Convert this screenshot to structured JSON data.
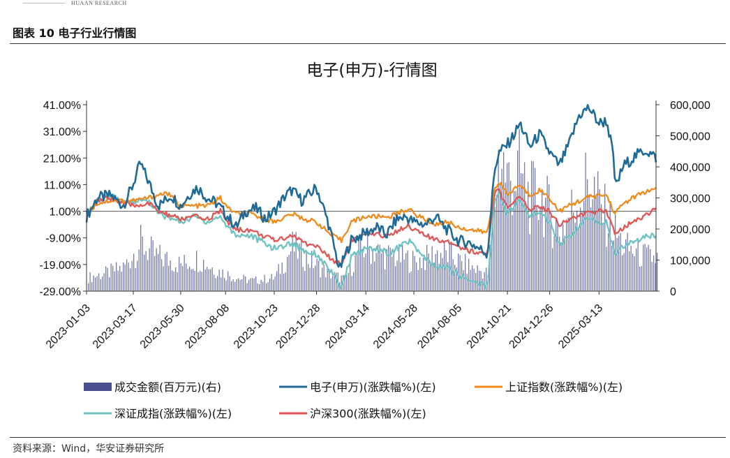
{
  "header": {
    "brand": "HUAAN RESEARCH",
    "figure_title": "图表 10 电子行业行情图"
  },
  "footer": {
    "source": "资料来源：Wind，华安证券研究所"
  },
  "colors": {
    "electronics": "#1f6a96",
    "shanghai": "#f08a1c",
    "shenzhen": "#6cc3c2",
    "hs300": "#e05654",
    "volume": "#4a4f8e"
  },
  "chart_data": {
    "type": "line",
    "title": "电子(申万)-行情图",
    "left_axis": {
      "ticks": [
        "41.00%",
        "31.00%",
        "21.00%",
        "11.00%",
        "1.00%",
        "-9.00%",
        "-19.00%",
        "-29.00%"
      ],
      "range": [
        -29,
        41
      ]
    },
    "right_axis": {
      "ticks": [
        "600,000",
        "500,000",
        "400,000",
        "300,000",
        "200,000",
        "100,000",
        "0"
      ],
      "range": [
        0,
        600000
      ]
    },
    "x_ticks": [
      "2023-01-03",
      "2023-03-17",
      "2023-05-30",
      "2023-08-08",
      "2023-10-23",
      "2023-12-28",
      "2024-03-14",
      "2024-05-28",
      "2024-08-05",
      "2024-10-21",
      "2024-12-26",
      "2025-03-13"
    ],
    "x_range": [
      "2023-01-03",
      "2025-06-10"
    ],
    "grid": "none",
    "legend_position": "bottom",
    "series": [
      {
        "name": "电子(申万)(涨跌幅%)(左)",
        "axis": "left",
        "points": [
          [
            "2023-01-03",
            -1
          ],
          [
            "2023-01-20",
            6
          ],
          [
            "2023-02-10",
            7
          ],
          [
            "2023-03-01",
            3
          ],
          [
            "2023-03-15",
            10
          ],
          [
            "2023-03-28",
            19
          ],
          [
            "2023-04-10",
            12
          ],
          [
            "2023-04-25",
            3
          ],
          [
            "2023-05-15",
            7
          ],
          [
            "2023-05-30",
            3
          ],
          [
            "2023-06-15",
            8
          ],
          [
            "2023-06-25",
            10
          ],
          [
            "2023-07-10",
            6
          ],
          [
            "2023-07-25",
            4
          ],
          [
            "2023-08-08",
            0
          ],
          [
            "2023-08-25",
            -5
          ],
          [
            "2023-09-08",
            1
          ],
          [
            "2023-09-25",
            2
          ],
          [
            "2023-10-10",
            -2
          ],
          [
            "2023-10-23",
            1
          ],
          [
            "2023-11-10",
            7
          ],
          [
            "2023-11-20",
            9
          ],
          [
            "2023-12-05",
            5
          ],
          [
            "2023-12-20",
            8
          ],
          [
            "2023-12-28",
            10
          ],
          [
            "2024-01-15",
            -3
          ],
          [
            "2024-02-02",
            -21
          ],
          [
            "2024-02-20",
            -10
          ],
          [
            "2024-03-14",
            -7
          ],
          [
            "2024-04-01",
            -5
          ],
          [
            "2024-04-15",
            -8
          ],
          [
            "2024-05-01",
            -2
          ],
          [
            "2024-05-15",
            -1
          ],
          [
            "2024-05-28",
            -3
          ],
          [
            "2024-06-15",
            -4
          ],
          [
            "2024-07-01",
            -1
          ],
          [
            "2024-07-15",
            -5
          ],
          [
            "2024-08-05",
            -10
          ],
          [
            "2024-08-25",
            -11
          ],
          [
            "2024-09-20",
            -15
          ],
          [
            "2024-10-01",
            17
          ],
          [
            "2024-10-08",
            23
          ],
          [
            "2024-10-21",
            26
          ],
          [
            "2024-11-01",
            30
          ],
          [
            "2024-11-10",
            34
          ],
          [
            "2024-11-25",
            25
          ],
          [
            "2024-12-10",
            30
          ],
          [
            "2024-12-26",
            23
          ],
          [
            "2025-01-10",
            18
          ],
          [
            "2025-01-25",
            26
          ],
          [
            "2025-02-10",
            37
          ],
          [
            "2025-02-25",
            40
          ],
          [
            "2025-03-13",
            34
          ],
          [
            "2025-03-25",
            35
          ],
          [
            "2025-04-03",
            24
          ],
          [
            "2025-04-08",
            10
          ],
          [
            "2025-04-20",
            18
          ],
          [
            "2025-05-10",
            22
          ],
          [
            "2025-05-25",
            24
          ],
          [
            "2025-06-10",
            21
          ]
        ]
      },
      {
        "name": "上证指数(涨跌幅%)(左)",
        "axis": "left",
        "points": [
          [
            "2023-01-03",
            0
          ],
          [
            "2023-01-20",
            4
          ],
          [
            "2023-02-10",
            5
          ],
          [
            "2023-03-01",
            5
          ],
          [
            "2023-03-17",
            5
          ],
          [
            "2023-04-10",
            6
          ],
          [
            "2023-05-08",
            8
          ],
          [
            "2023-05-30",
            3
          ],
          [
            "2023-06-20",
            3
          ],
          [
            "2023-07-10",
            3
          ],
          [
            "2023-07-31",
            6
          ],
          [
            "2023-08-08",
            3
          ],
          [
            "2023-08-25",
            0
          ],
          [
            "2023-09-15",
            0
          ],
          [
            "2023-10-23",
            -3
          ],
          [
            "2023-11-20",
            0
          ],
          [
            "2023-12-10",
            -2
          ],
          [
            "2023-12-28",
            -3
          ],
          [
            "2024-01-20",
            -8
          ],
          [
            "2024-02-05",
            -10
          ],
          [
            "2024-02-20",
            -3
          ],
          [
            "2024-03-14",
            -1
          ],
          [
            "2024-04-01",
            -1
          ],
          [
            "2024-04-20",
            -1
          ],
          [
            "2024-05-20",
            2
          ],
          [
            "2024-05-28",
            0
          ],
          [
            "2024-06-15",
            -2
          ],
          [
            "2024-07-01",
            -4
          ],
          [
            "2024-07-20",
            -3
          ],
          [
            "2024-08-05",
            -5
          ],
          [
            "2024-08-25",
            -6
          ],
          [
            "2024-09-20",
            -7
          ],
          [
            "2024-10-01",
            10
          ],
          [
            "2024-10-08",
            12
          ],
          [
            "2024-10-21",
            7
          ],
          [
            "2024-11-08",
            11
          ],
          [
            "2024-11-25",
            7
          ],
          [
            "2024-12-10",
            9
          ],
          [
            "2024-12-26",
            6
          ],
          [
            "2025-01-10",
            1
          ],
          [
            "2025-01-25",
            3
          ],
          [
            "2025-02-20",
            6
          ],
          [
            "2025-03-13",
            7
          ],
          [
            "2025-03-25",
            7
          ],
          [
            "2025-04-07",
            0
          ],
          [
            "2025-04-20",
            4
          ],
          [
            "2025-05-20",
            8
          ],
          [
            "2025-06-10",
            9
          ]
        ]
      },
      {
        "name": "深证成指(涨跌幅%)(左)",
        "axis": "left",
        "points": [
          [
            "2023-01-03",
            0
          ],
          [
            "2023-01-20",
            5
          ],
          [
            "2023-02-10",
            7
          ],
          [
            "2023-03-01",
            4
          ],
          [
            "2023-03-17",
            5
          ],
          [
            "2023-04-10",
            5
          ],
          [
            "2023-04-25",
            0
          ],
          [
            "2023-05-30",
            -3
          ],
          [
            "2023-06-20",
            -1
          ],
          [
            "2023-07-10",
            -3
          ],
          [
            "2023-07-31",
            -1
          ],
          [
            "2023-08-08",
            -4
          ],
          [
            "2023-08-25",
            -8
          ],
          [
            "2023-09-15",
            -8
          ],
          [
            "2023-10-23",
            -13
          ],
          [
            "2023-11-20",
            -11
          ],
          [
            "2023-12-10",
            -14
          ],
          [
            "2023-12-28",
            -15
          ],
          [
            "2024-01-20",
            -22
          ],
          [
            "2024-02-05",
            -28
          ],
          [
            "2024-02-20",
            -16
          ],
          [
            "2024-03-14",
            -13
          ],
          [
            "2024-04-01",
            -13
          ],
          [
            "2024-04-20",
            -15
          ],
          [
            "2024-05-20",
            -10
          ],
          [
            "2024-05-28",
            -12
          ],
          [
            "2024-06-15",
            -17
          ],
          [
            "2024-07-01",
            -20
          ],
          [
            "2024-07-20",
            -20
          ],
          [
            "2024-08-05",
            -23
          ],
          [
            "2024-08-25",
            -25
          ],
          [
            "2024-09-20",
            -27
          ],
          [
            "2024-10-01",
            5
          ],
          [
            "2024-10-08",
            8
          ],
          [
            "2024-10-21",
            0
          ],
          [
            "2024-11-08",
            5
          ],
          [
            "2024-11-25",
            -1
          ],
          [
            "2024-12-10",
            1
          ],
          [
            "2024-12-26",
            -3
          ],
          [
            "2025-01-10",
            -11
          ],
          [
            "2025-01-25",
            -9
          ],
          [
            "2025-02-20",
            -2
          ],
          [
            "2025-03-13",
            -3
          ],
          [
            "2025-03-25",
            -3
          ],
          [
            "2025-04-07",
            -16
          ],
          [
            "2025-04-20",
            -12
          ],
          [
            "2025-05-20",
            -9
          ],
          [
            "2025-06-10",
            -8
          ]
        ]
      },
      {
        "name": "沪深300(涨跌幅%)(左)",
        "axis": "left",
        "points": [
          [
            "2023-01-03",
            0
          ],
          [
            "2023-01-20",
            5
          ],
          [
            "2023-02-10",
            6
          ],
          [
            "2023-03-01",
            4
          ],
          [
            "2023-03-17",
            3
          ],
          [
            "2023-04-10",
            4
          ],
          [
            "2023-04-25",
            1
          ],
          [
            "2023-05-30",
            -2
          ],
          [
            "2023-06-20",
            -1
          ],
          [
            "2023-07-10",
            -2
          ],
          [
            "2023-07-31",
            1
          ],
          [
            "2023-08-08",
            -2
          ],
          [
            "2023-08-25",
            -6
          ],
          [
            "2023-09-15",
            -6
          ],
          [
            "2023-10-23",
            -10
          ],
          [
            "2023-11-20",
            -8
          ],
          [
            "2023-12-10",
            -11
          ],
          [
            "2023-12-28",
            -12
          ],
          [
            "2024-01-20",
            -17
          ],
          [
            "2024-02-05",
            -19
          ],
          [
            "2024-02-20",
            -10
          ],
          [
            "2024-03-14",
            -8
          ],
          [
            "2024-04-01",
            -8
          ],
          [
            "2024-04-20",
            -8
          ],
          [
            "2024-05-20",
            -4
          ],
          [
            "2024-05-28",
            -6
          ],
          [
            "2024-06-15",
            -8
          ],
          [
            "2024-07-01",
            -10
          ],
          [
            "2024-07-20",
            -10
          ],
          [
            "2024-08-05",
            -12
          ],
          [
            "2024-08-25",
            -14
          ],
          [
            "2024-09-20",
            -15
          ],
          [
            "2024-10-01",
            8
          ],
          [
            "2024-10-08",
            9
          ],
          [
            "2024-10-21",
            2
          ],
          [
            "2024-11-08",
            6
          ],
          [
            "2024-11-25",
            2
          ],
          [
            "2024-12-10",
            3
          ],
          [
            "2024-12-26",
            1
          ],
          [
            "2025-01-10",
            -4
          ],
          [
            "2025-01-25",
            -2
          ],
          [
            "2025-02-20",
            0
          ],
          [
            "2025-03-13",
            1
          ],
          [
            "2025-03-25",
            1
          ],
          [
            "2025-04-07",
            -7
          ],
          [
            "2025-04-20",
            -5
          ],
          [
            "2025-05-20",
            -1
          ],
          [
            "2025-06-10",
            2
          ]
        ]
      }
    ],
    "volume": {
      "name": "成交金额(百万元)(右)",
      "axis": "right",
      "points": [
        [
          "2023-01-03",
          45000
        ],
        [
          "2023-02-01",
          60000
        ],
        [
          "2023-03-01",
          80000
        ],
        [
          "2023-03-28",
          160000
        ],
        [
          "2023-04-20",
          120000
        ],
        [
          "2023-05-30",
          90000
        ],
        [
          "2023-06-25",
          110000
        ],
        [
          "2023-07-25",
          70000
        ],
        [
          "2023-08-25",
          45000
        ],
        [
          "2023-09-20",
          35000
        ],
        [
          "2023-10-23",
          45000
        ],
        [
          "2023-11-10",
          110000
        ],
        [
          "2023-11-20",
          150000
        ],
        [
          "2023-12-20",
          100000
        ],
        [
          "2024-01-15",
          60000
        ],
        [
          "2024-02-10",
          40000
        ],
        [
          "2024-03-01",
          130000
        ],
        [
          "2024-03-14",
          150000
        ],
        [
          "2024-04-15",
          120000
        ],
        [
          "2024-05-15",
          110000
        ],
        [
          "2024-05-28",
          100000
        ],
        [
          "2024-06-15",
          110000
        ],
        [
          "2024-07-01",
          130000
        ],
        [
          "2024-07-25",
          120000
        ],
        [
          "2024-08-05",
          100000
        ],
        [
          "2024-08-25",
          80000
        ],
        [
          "2024-09-20",
          60000
        ],
        [
          "2024-10-08",
          480000
        ],
        [
          "2024-10-21",
          370000
        ],
        [
          "2024-11-08",
          400000
        ],
        [
          "2024-11-25",
          310000
        ],
        [
          "2024-12-10",
          330000
        ],
        [
          "2024-12-26",
          260000
        ],
        [
          "2025-01-10",
          200000
        ],
        [
          "2025-02-10",
          320000
        ],
        [
          "2025-02-25",
          380000
        ],
        [
          "2025-03-13",
          290000
        ],
        [
          "2025-04-03",
          210000
        ],
        [
          "2025-04-20",
          150000
        ],
        [
          "2025-05-20",
          120000
        ],
        [
          "2025-06-10",
          110000
        ]
      ]
    }
  }
}
